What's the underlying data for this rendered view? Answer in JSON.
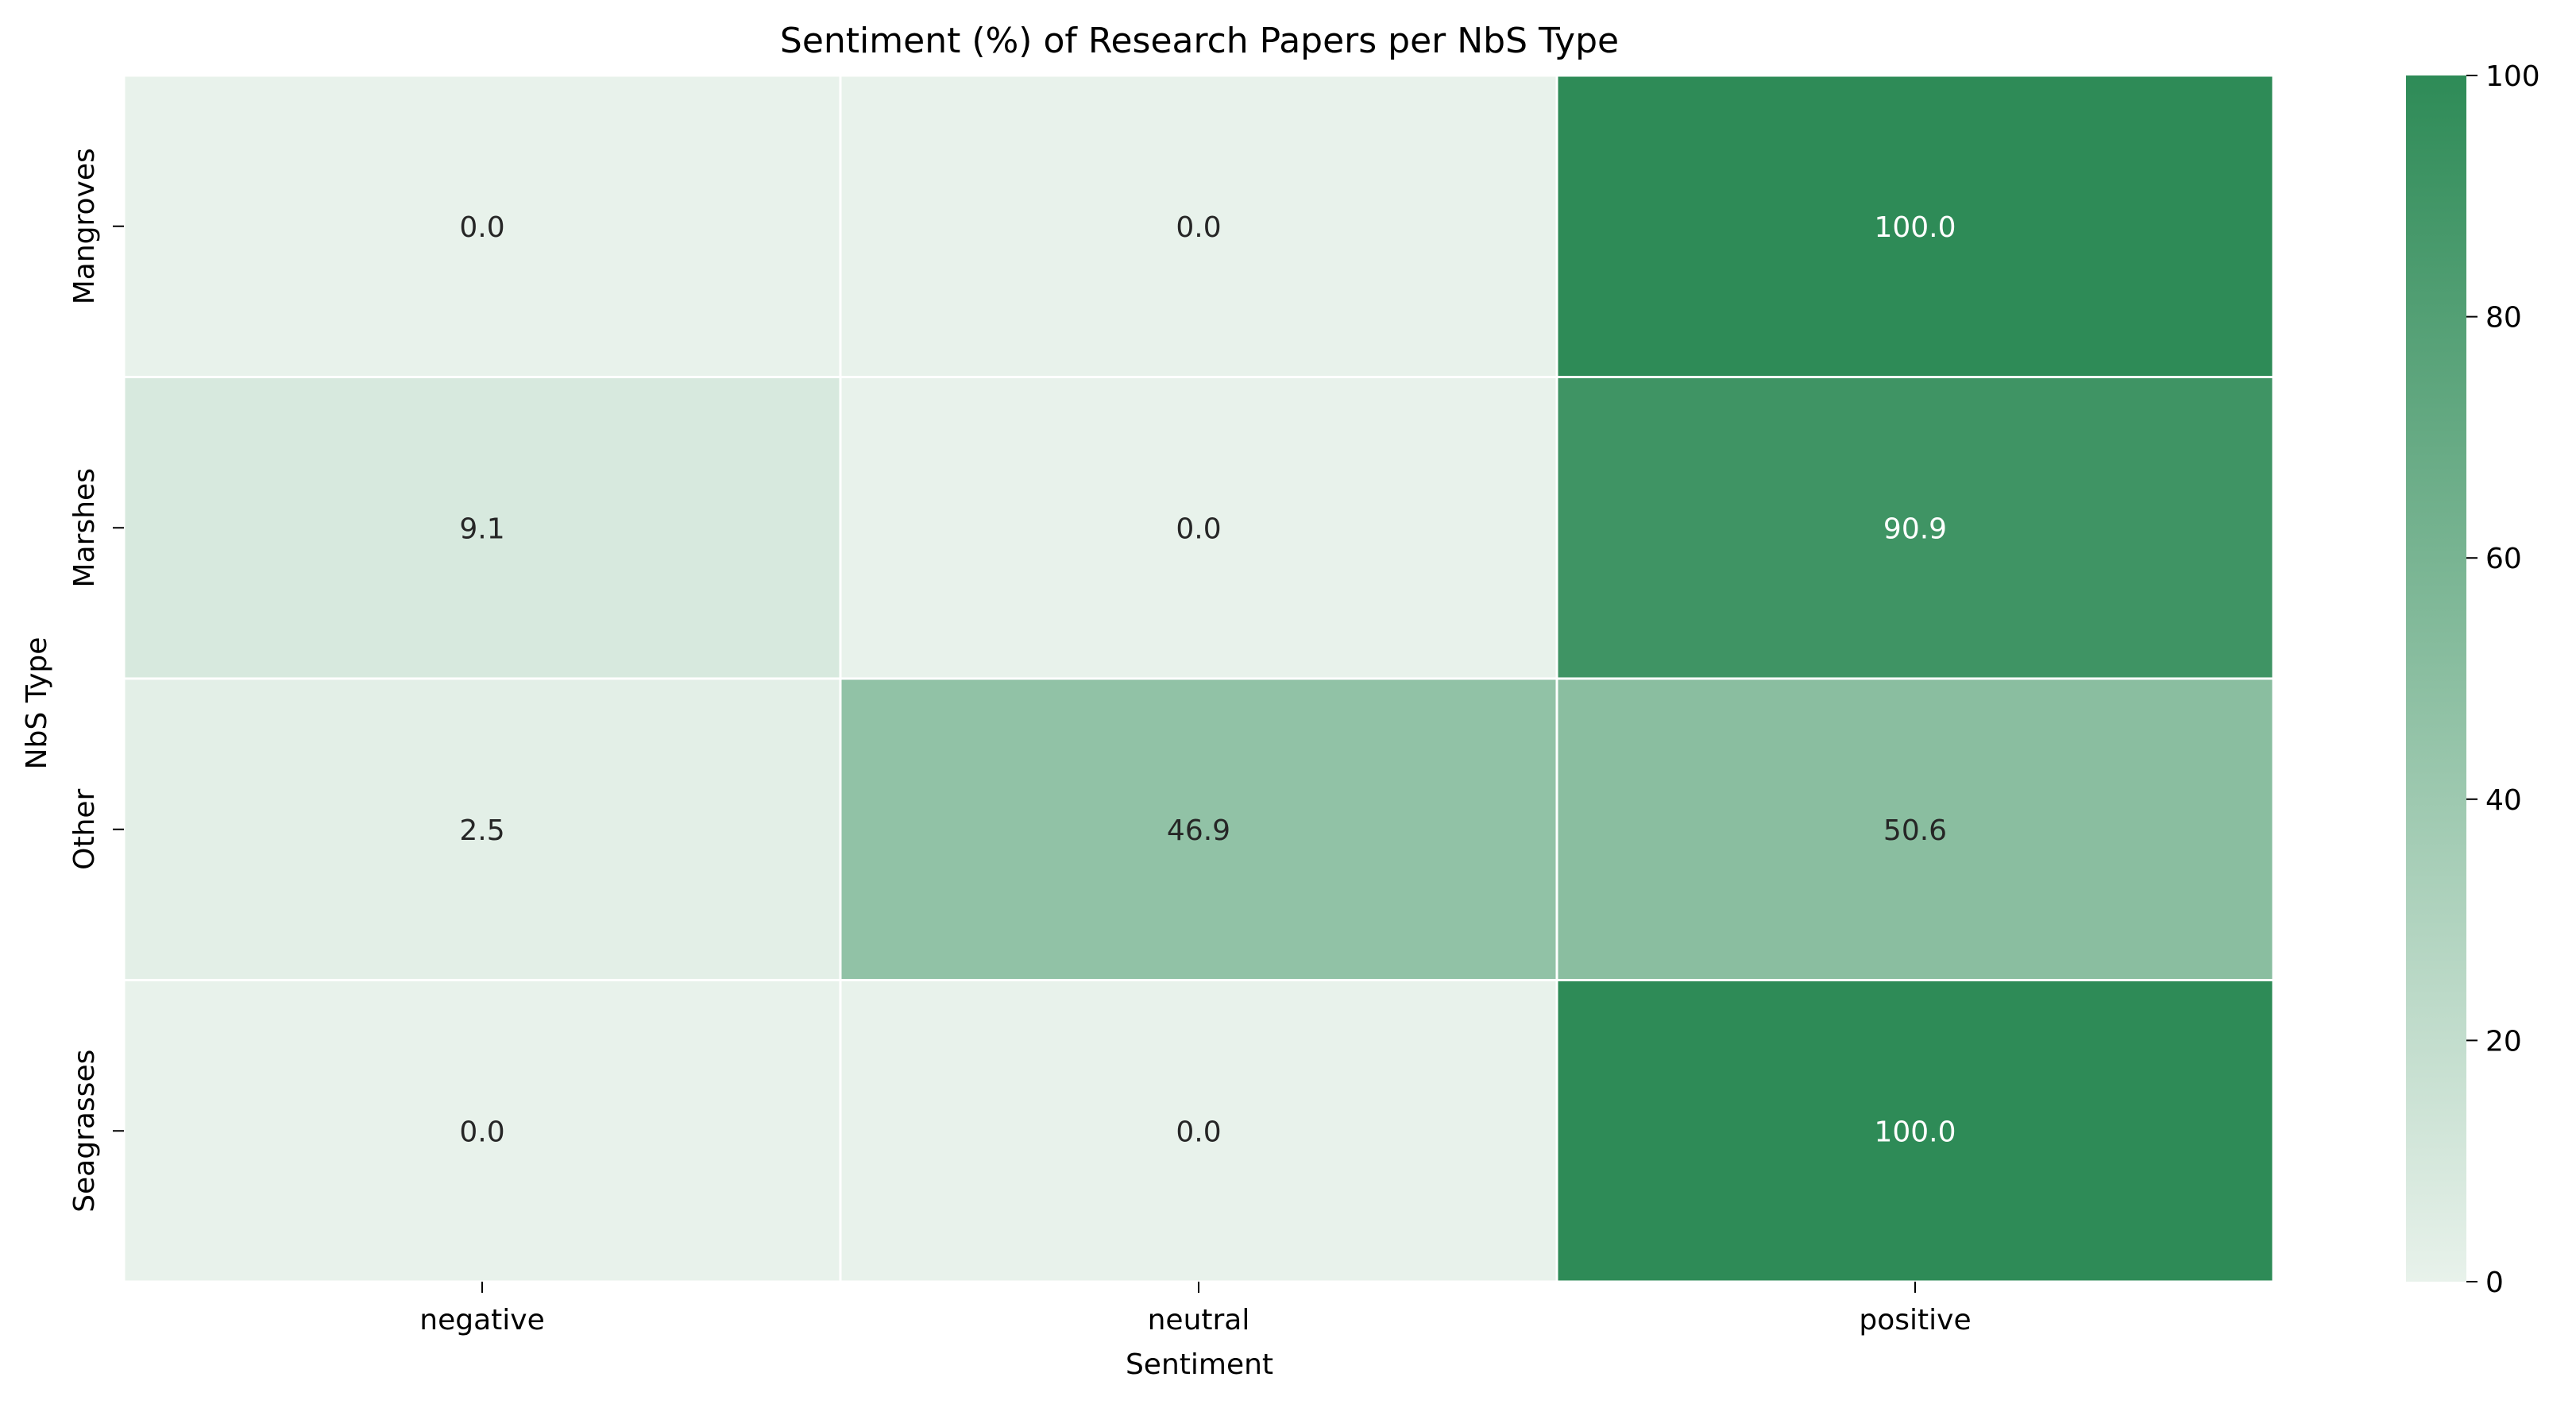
{
  "chart_data": {
    "type": "heatmap",
    "title": "Sentiment (%) of Research Papers per NbS Type",
    "xlabel": "Sentiment",
    "ylabel": "NbS Type",
    "x_categories": [
      "negative",
      "neutral",
      "positive"
    ],
    "y_categories": [
      "Mangroves",
      "Marshes",
      "Other",
      "Seagrasses"
    ],
    "values": [
      [
        0.0,
        0.0,
        100.0
      ],
      [
        9.1,
        0.0,
        90.9
      ],
      [
        2.5,
        46.9,
        50.6
      ],
      [
        0.0,
        0.0,
        100.0
      ]
    ],
    "value_labels": [
      [
        "0.0",
        "0.0",
        "100.0"
      ],
      [
        "9.1",
        "0.0",
        "90.9"
      ],
      [
        "2.5",
        "46.9",
        "50.6"
      ],
      [
        "0.0",
        "0.0",
        "100.0"
      ]
    ],
    "colorbar": {
      "range": [
        0,
        100
      ],
      "ticks": [
        0,
        20,
        40,
        60,
        80,
        100
      ],
      "tick_labels": [
        "0",
        "20",
        "40",
        "60",
        "80",
        "100"
      ],
      "color_low": "#e8f2eb",
      "color_high": "#2e8b57"
    },
    "grid": false
  }
}
